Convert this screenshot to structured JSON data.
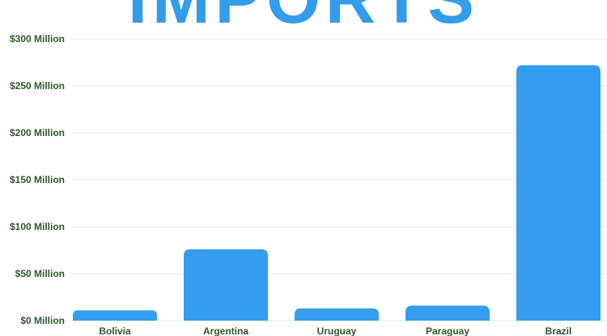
{
  "title": "IMPORTS",
  "colors": {
    "title": "#339ceb",
    "bar": "#349ded",
    "tick_text": "#2d5a27",
    "grid": "#e6e6e6"
  },
  "chart_data": {
    "type": "bar",
    "title": "IMPORTS",
    "xlabel": "",
    "ylabel": "",
    "categories": [
      "Bolivia",
      "Argentina",
      "Uruguay",
      "Paraguay",
      "Brazil"
    ],
    "values": [
      11,
      76,
      13,
      16,
      272
    ],
    "ylim": [
      0,
      300
    ],
    "yticks": [
      0,
      50,
      100,
      150,
      200,
      250,
      300
    ],
    "ytick_labels": [
      "$0 Million",
      "$50 Million",
      "$100 Million",
      "$150 Million",
      "$200 Million",
      "$250 Million",
      "$300 Million"
    ],
    "unit": "Million",
    "grid": true,
    "legend": "none"
  }
}
